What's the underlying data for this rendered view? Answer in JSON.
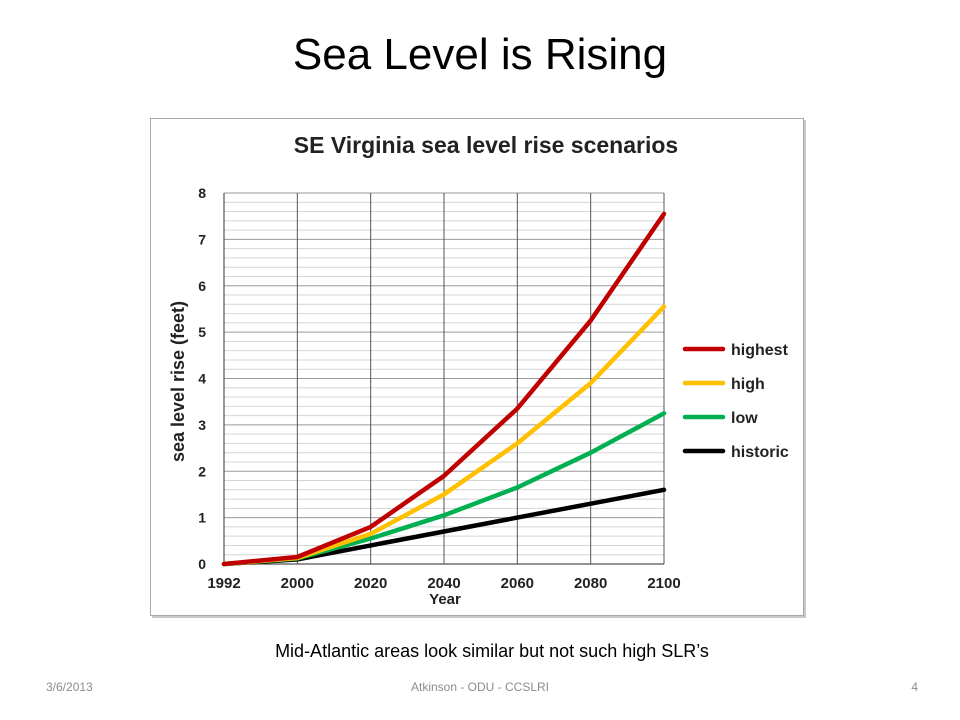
{
  "slide": {
    "title": "Sea Level is Rising",
    "caption": "Mid-Atlantic areas look similar but not such high SLR’s",
    "footer_date": "3/6/2013",
    "footer_center": "Atkinson - ODU - CCSLRI",
    "page_number": "4"
  },
  "chart_data": {
    "type": "line",
    "title": "SE Virginia sea level rise scenarios",
    "xlabel": "Year",
    "ylabel": "sea level rise (feet)",
    "x": [
      1992,
      2000,
      2020,
      2040,
      2060,
      2080,
      2100
    ],
    "x_tick_labels": [
      "1992",
      "2000",
      "2020",
      "2040",
      "2060",
      "2080",
      "2100"
    ],
    "y_ticks": [
      0,
      1,
      2,
      3,
      4,
      5,
      6,
      7,
      8
    ],
    "ylim": [
      0,
      8
    ],
    "grid": true,
    "legend_position": "right",
    "series": [
      {
        "name": "highest",
        "color": "#c00000",
        "values": [
          0,
          0.15,
          0.8,
          1.9,
          3.35,
          5.25,
          7.55
        ]
      },
      {
        "name": "high",
        "color": "#ffc000",
        "values": [
          0,
          0.13,
          0.65,
          1.5,
          2.6,
          3.9,
          5.55
        ]
      },
      {
        "name": "low",
        "color": "#00b050",
        "values": [
          0,
          0.12,
          0.55,
          1.05,
          1.65,
          2.4,
          3.25
        ]
      },
      {
        "name": "historic",
        "color": "#000000",
        "values": [
          0,
          0.1,
          0.4,
          0.7,
          1.0,
          1.3,
          1.6
        ]
      }
    ]
  }
}
